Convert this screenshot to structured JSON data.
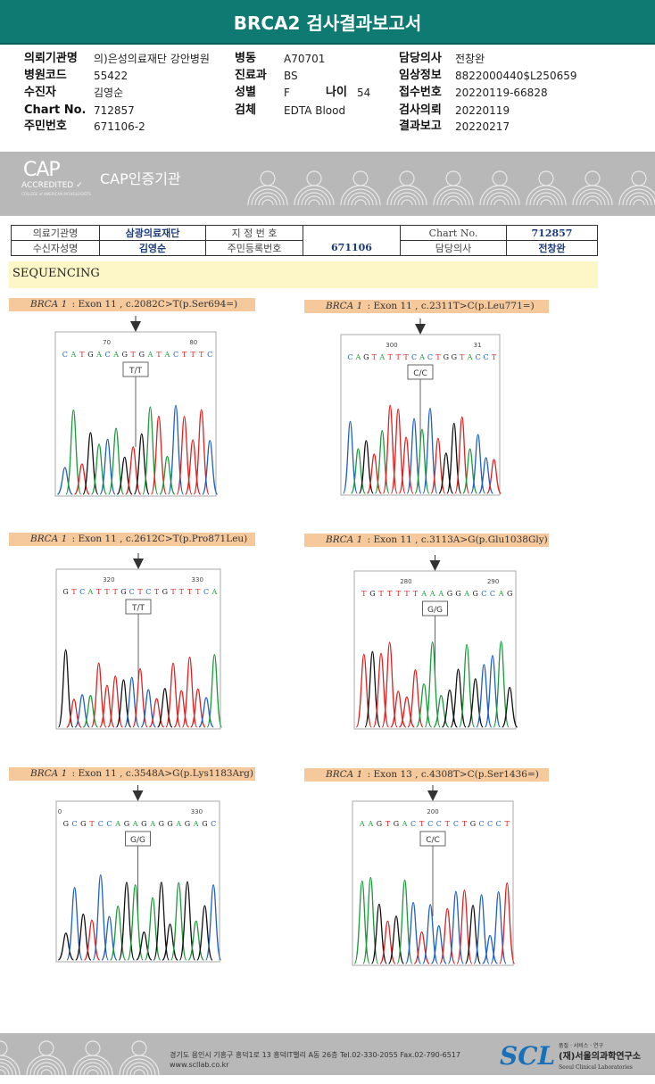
{
  "title": "BRCA2 검사결과보고서",
  "info": [
    {
      "label": "의뢰기관명",
      "value": "의)은성의료재단 강안병원"
    },
    {
      "label": "병원코드",
      "value": "55422"
    },
    {
      "label": "수진자",
      "value": "김영순"
    },
    {
      "label": "Chart No.",
      "value": "712857"
    },
    {
      "label": "주민번호",
      "value": "671106-2"
    },
    {
      "label": "병동",
      "value": "A70701"
    },
    {
      "label": "진료과",
      "value": "BS"
    },
    {
      "label": "성별",
      "value": "F"
    },
    {
      "label": "검체",
      "value": "EDTA Blood"
    },
    {
      "label": "나이",
      "value": "54"
    },
    {
      "label": "담당의사",
      "value": "전창완"
    },
    {
      "label": "임상정보",
      "value": "8822000440$L250659"
    },
    {
      "label": "접수번호",
      "value": "20220119-66828"
    },
    {
      "label": "검사의뢰",
      "value": "20220119"
    },
    {
      "label": "결과보고",
      "value": "20220217"
    }
  ],
  "banner": {
    "cap": "CAP",
    "accredited": "ACCREDITED ✓",
    "college": "COLLEGE of AMERICAN PATHOLOGISTS",
    "cert": "CAP인증기관"
  },
  "patient_table": {
    "r1": [
      "의료기관명",
      "삼광의료재단",
      "지 정 번 호",
      "",
      "Chart No.",
      "712857"
    ],
    "r2": [
      "수신자성명",
      "김영순",
      "주민등록번호",
      "671106",
      "담당의사",
      "전창완"
    ]
  },
  "section": "SEQUENCING",
  "colors": {
    "A": "#1a9a3a",
    "C": "#1f5fc0",
    "G": "#111111",
    "T": "#e02020",
    "header": "#0f7a72",
    "label_bg": "#f6c99c"
  },
  "panels": [
    {
      "gene": "BRCA 1",
      "desc": " : Exon 11 , c.2082C>T(p.Ser694=)",
      "ticks": [
        "70",
        "80"
      ],
      "seq": "CATGACAGTGATACTTTC",
      "genotype": "T/T"
    },
    {
      "gene": "BRCA 1",
      "desc": " : Exon 11 , c.2311T>C(p.Leu771=)",
      "ticks": [
        "300",
        "31"
      ],
      "seq": "CAGTATTTCACTGGTACCT",
      "genotype": "C/C"
    },
    {
      "gene": "BRCA 1",
      "desc": " : Exon 11 , c.2612C>T(p.Pro871Leu)",
      "ticks": [
        "320",
        "330"
      ],
      "seq": "GTCATTTGCTCTGTTTTCA",
      "genotype": "T/T"
    },
    {
      "gene": "BRCA 1",
      "desc": " : Exon 11 , c.3113A>G(p.Glu1038Gly)",
      "ticks": [
        "280",
        "290"
      ],
      "seq": "TGTTTTTAAAGGAGCCAG",
      "genotype": "G/G"
    },
    {
      "gene": "BRCA 1",
      "desc": " : Exon 11 , c.3548A>G(p.Lys1183Arg)",
      "ticks": [
        "0",
        "330"
      ],
      "seq": "GCGTCCAGAGAGGAGAGC",
      "genotype": "G/G"
    },
    {
      "gene": "BRCA 1",
      "desc": " : Exon 13 , c.4308T>C(p.Ser1436=)",
      "ticks": [
        "200"
      ],
      "seq": "AAGTGACTCCTCTGCCCT",
      "genotype": "C/C"
    }
  ],
  "footer": {
    "address": "경기도 용인시 기흥구 흥덕1로 13 흥덕IT밸리 A동 26층  Tel.02-330-2055  Fax.02-790-6517  www.scllab.co.kr",
    "logo": "SCL",
    "tagline": "품질 · 서비스 · 연구",
    "org": "(재)서울의과학연구소",
    "org_en": "Seoul Clinical Laboratories"
  }
}
